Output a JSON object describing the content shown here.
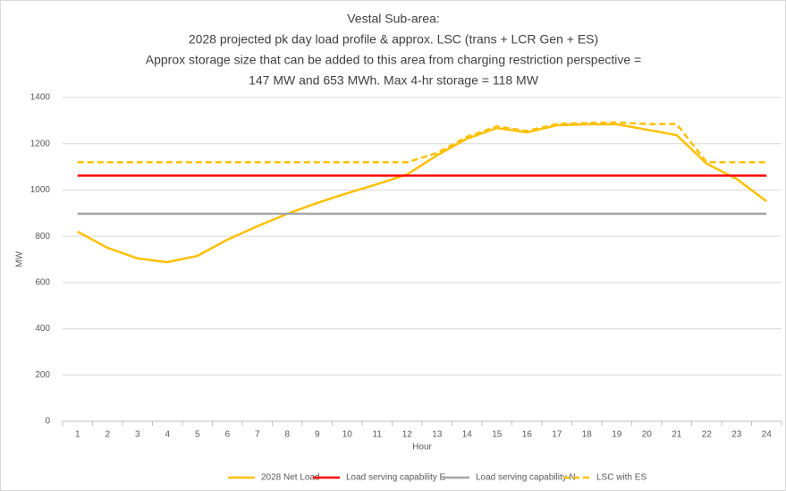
{
  "chart_data": {
    "type": "line",
    "title": [
      "Vestal Sub-area:",
      "2028 projected pk day load profile & approx. LSC (trans + LCR Gen + ES)",
      "Approx storage size that can be added to this area from charging restriction perspective =",
      "147 MW and 653 MWh. Max 4-hr storage = 118 MW"
    ],
    "x_label": "Hour",
    "y_label": "MW",
    "categories": [
      "1",
      "2",
      "3",
      "4",
      "5",
      "6",
      "7",
      "8",
      "9",
      "10",
      "11",
      "12",
      "13",
      "14",
      "15",
      "16",
      "17",
      "18",
      "19",
      "20",
      "21",
      "22",
      "23",
      "24"
    ],
    "series": [
      {
        "name": "2028 Net Load",
        "color": "#FFC000",
        "dashed": false,
        "values": [
          820,
          750,
          704,
          688,
          715,
          785,
          843,
          897,
          944,
          986,
          1025,
          1067,
          1150,
          1222,
          1268,
          1249,
          1280,
          1284,
          1284,
          1261,
          1237,
          1114,
          1048,
          951
        ]
      },
      {
        "name": "Load serving capability E",
        "color": "#FF0000",
        "dashed": false,
        "values": [
          1062,
          1062,
          1062,
          1062,
          1062,
          1062,
          1062,
          1062,
          1062,
          1062,
          1062,
          1062,
          1062,
          1062,
          1062,
          1062,
          1062,
          1062,
          1062,
          1062,
          1062,
          1062,
          1062,
          1062
        ]
      },
      {
        "name": "Load serving capability N",
        "color": "#A5A5A5",
        "dashed": false,
        "values": [
          897,
          897,
          897,
          897,
          897,
          897,
          897,
          897,
          897,
          897,
          897,
          897,
          897,
          897,
          897,
          897,
          897,
          897,
          897,
          897,
          897,
          897,
          897,
          897
        ]
      },
      {
        "name": "LSC with ES",
        "color": "#FFC000",
        "dashed": true,
        "values": [
          1120,
          1120,
          1120,
          1120,
          1120,
          1120,
          1120,
          1120,
          1120,
          1120,
          1120,
          1120,
          1160,
          1230,
          1275,
          1255,
          1285,
          1290,
          1292,
          1285,
          1285,
          1120,
          1120,
          1120
        ]
      }
    ],
    "ylim": [
      0,
      1400
    ],
    "yticks": [
      0,
      200,
      400,
      600,
      800,
      1000,
      1200,
      1400
    ],
    "grid": true,
    "legend": "bottom"
  }
}
